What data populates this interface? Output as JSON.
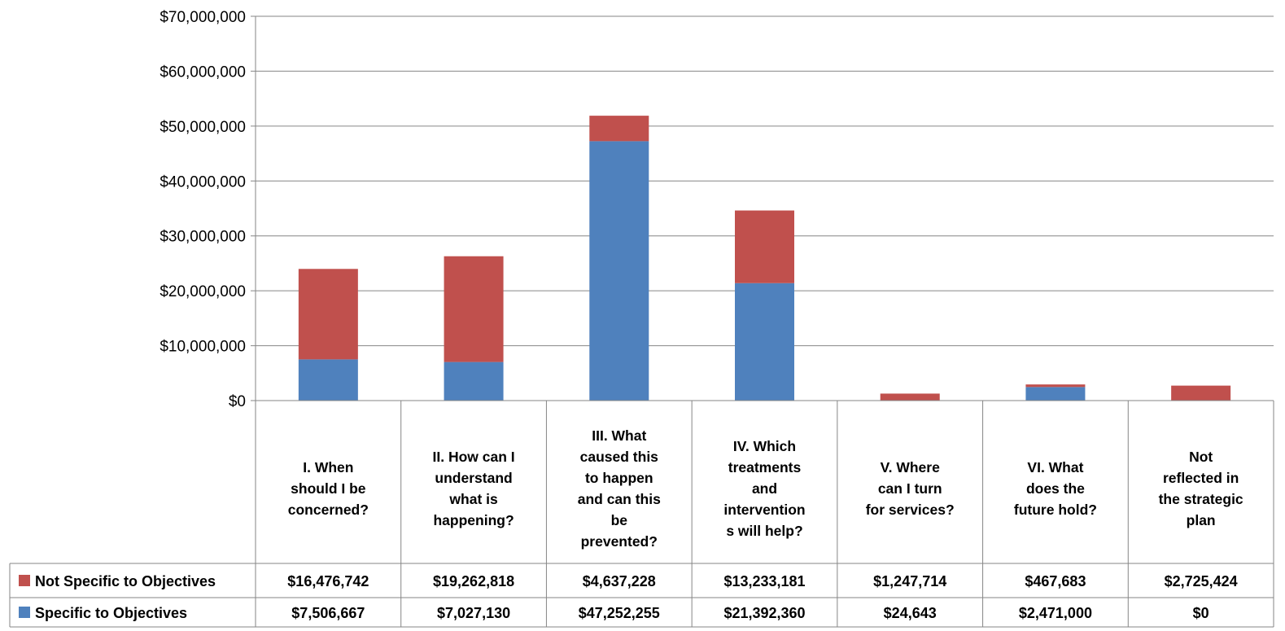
{
  "chart_data": {
    "type": "bar",
    "stacked": true,
    "title": "",
    "xlabel": "",
    "ylabel": "",
    "ylim": [
      0,
      70000000
    ],
    "ytick_step": 10000000,
    "yticks": [
      "$0",
      "$10,000,000",
      "$20,000,000",
      "$30,000,000",
      "$40,000,000",
      "$50,000,000",
      "$60,000,000",
      "$70,000,000"
    ],
    "grid": true,
    "legend": "data-table-left",
    "categories": [
      [
        "I. When",
        "should I be",
        "concerned?"
      ],
      [
        "II. How can I",
        "understand",
        "what is",
        "happening?"
      ],
      [
        "III. What",
        "caused this",
        "to happen",
        "and can this",
        "be",
        "prevented?"
      ],
      [
        "IV. Which",
        "treatments",
        "and",
        "intervention",
        "s will help?"
      ],
      [
        "V. Where",
        "can I turn",
        "for services?"
      ],
      [
        "VI. What",
        "does the",
        "future hold?"
      ],
      [
        "Not",
        "reflected in",
        "the strategic",
        "plan"
      ]
    ],
    "series": [
      {
        "name": "Specific to Objectives",
        "color": "#4F81BD",
        "values": [
          7506667,
          7027130,
          47252255,
          21392360,
          24643,
          2471000,
          0
        ],
        "labels": [
          "$7,506,667",
          "$7,027,130",
          "$47,252,255",
          "$21,392,360",
          "$24,643",
          "$2,471,000",
          "$0"
        ]
      },
      {
        "name": "Not Specific to Objectives",
        "color": "#C0504D",
        "values": [
          16476742,
          19262818,
          4637228,
          13233181,
          1247714,
          467683,
          2725424
        ],
        "labels": [
          "$16,476,742",
          "$19,262,818",
          "$4,637,228",
          "$13,233,181",
          "$1,247,714",
          "$467,683",
          "$2,725,424"
        ]
      }
    ]
  }
}
